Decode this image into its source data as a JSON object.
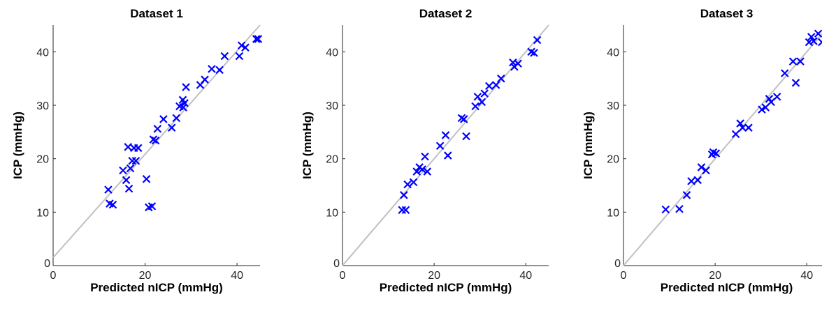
{
  "chart_data": [
    {
      "type": "scatter",
      "title": "Dataset 1",
      "xlabel": "Predicted nICP (mmHg)",
      "ylabel": "ICP (mmHg)",
      "xlim": [
        0,
        45
      ],
      "ylim": [
        0,
        45
      ],
      "xticks": [
        0,
        20,
        40
      ],
      "yticks": [
        10,
        20,
        30,
        40
      ],
      "ytick_zero_label": "0",
      "marker": "x",
      "marker_color": "#0000ff",
      "reference_line": {
        "x": [
          0,
          45
        ],
        "y": [
          1.5,
          45
        ],
        "color": "#c0c0c0"
      },
      "x": [
        12.0,
        12.3,
        13.0,
        15.2,
        15.9,
        16.3,
        16.5,
        16.8,
        17.2,
        17.6,
        18.0,
        18.5,
        20.3,
        20.8,
        21.5,
        21.8,
        22.3,
        22.7,
        24.0,
        25.8,
        26.8,
        27.5,
        28.2,
        28.3,
        28.6,
        28.9,
        32.0,
        33.0,
        34.5,
        36.2,
        37.3,
        40.5,
        41.0,
        41.8,
        44.2,
        44.6
      ],
      "y": [
        14.2,
        11.6,
        11.4,
        17.8,
        16.0,
        22.2,
        14.4,
        18.2,
        19.6,
        22.0,
        19.6,
        22.0,
        16.2,
        10.9,
        11.1,
        23.6,
        23.4,
        25.6,
        27.4,
        25.8,
        27.6,
        29.8,
        31.0,
        29.6,
        30.4,
        33.4,
        33.8,
        34.8,
        36.8,
        36.6,
        39.2,
        39.2,
        41.2,
        40.8,
        42.4,
        42.4
      ]
    },
    {
      "type": "scatter",
      "title": "Dataset 2",
      "xlabel": "Predicted nICP (mmHg)",
      "ylabel": "ICP (mmHg)",
      "xlim": [
        0,
        45
      ],
      "ylim": [
        0,
        45
      ],
      "xticks": [
        0,
        20,
        40
      ],
      "yticks": [
        10,
        20,
        30,
        40
      ],
      "ytick_zero_label": "0",
      "marker": "x",
      "marker_color": "#0000ff",
      "reference_line": {
        "x": [
          0,
          45
        ],
        "y": [
          0,
          45
        ],
        "color": "#c0c0c0"
      },
      "x": [
        13.0,
        13.4,
        13.8,
        14.2,
        15.5,
        16.2,
        16.8,
        17.4,
        18.0,
        18.5,
        21.3,
        22.5,
        23.0,
        26.0,
        26.5,
        27.0,
        29.0,
        29.5,
        30.4,
        31.0,
        32.0,
        33.5,
        34.6,
        37.2,
        37.5,
        38.3,
        41.2,
        41.8,
        42.5
      ],
      "y": [
        10.4,
        13.2,
        10.4,
        15.2,
        15.6,
        17.6,
        18.4,
        18.0,
        20.4,
        17.6,
        22.4,
        24.4,
        20.6,
        27.6,
        27.4,
        24.2,
        29.8,
        31.6,
        30.6,
        32.2,
        33.6,
        33.8,
        35.0,
        38.0,
        37.2,
        37.8,
        40.0,
        39.8,
        42.2
      ]
    },
    {
      "type": "scatter",
      "title": "Dataset 3",
      "xlabel": "Predicted nICP (mmHg)",
      "ylabel": "ICP (mmHg)",
      "xlim": [
        0,
        45
      ],
      "ylim": [
        0,
        45
      ],
      "xticks": [
        0,
        20,
        40
      ],
      "yticks": [
        10,
        20,
        30,
        40
      ],
      "ytick_zero_label": "0",
      "marker": "x",
      "marker_color": "#0000ff",
      "reference_line": {
        "x": [
          0,
          45
        ],
        "y": [
          0,
          45
        ],
        "color": "#c0c0c0"
      },
      "x": [
        9.2,
        12.2,
        13.8,
        14.8,
        16.2,
        17.0,
        18.0,
        19.3,
        19.6,
        20.2,
        24.5,
        25.5,
        26.0,
        27.3,
        30.2,
        31.0,
        31.8,
        32.2,
        33.5,
        35.2,
        37.0,
        37.6,
        38.6,
        40.5,
        41.0,
        41.5,
        42.5,
        43.3,
        44.2
      ],
      "y": [
        10.5,
        10.6,
        13.2,
        15.8,
        16.0,
        18.4,
        17.8,
        20.8,
        21.2,
        21.0,
        24.6,
        26.6,
        25.8,
        25.8,
        29.2,
        29.6,
        31.2,
        30.6,
        31.6,
        36.0,
        38.2,
        34.2,
        38.2,
        41.8,
        42.8,
        42.0,
        43.4,
        41.8,
        43.8
      ]
    }
  ]
}
